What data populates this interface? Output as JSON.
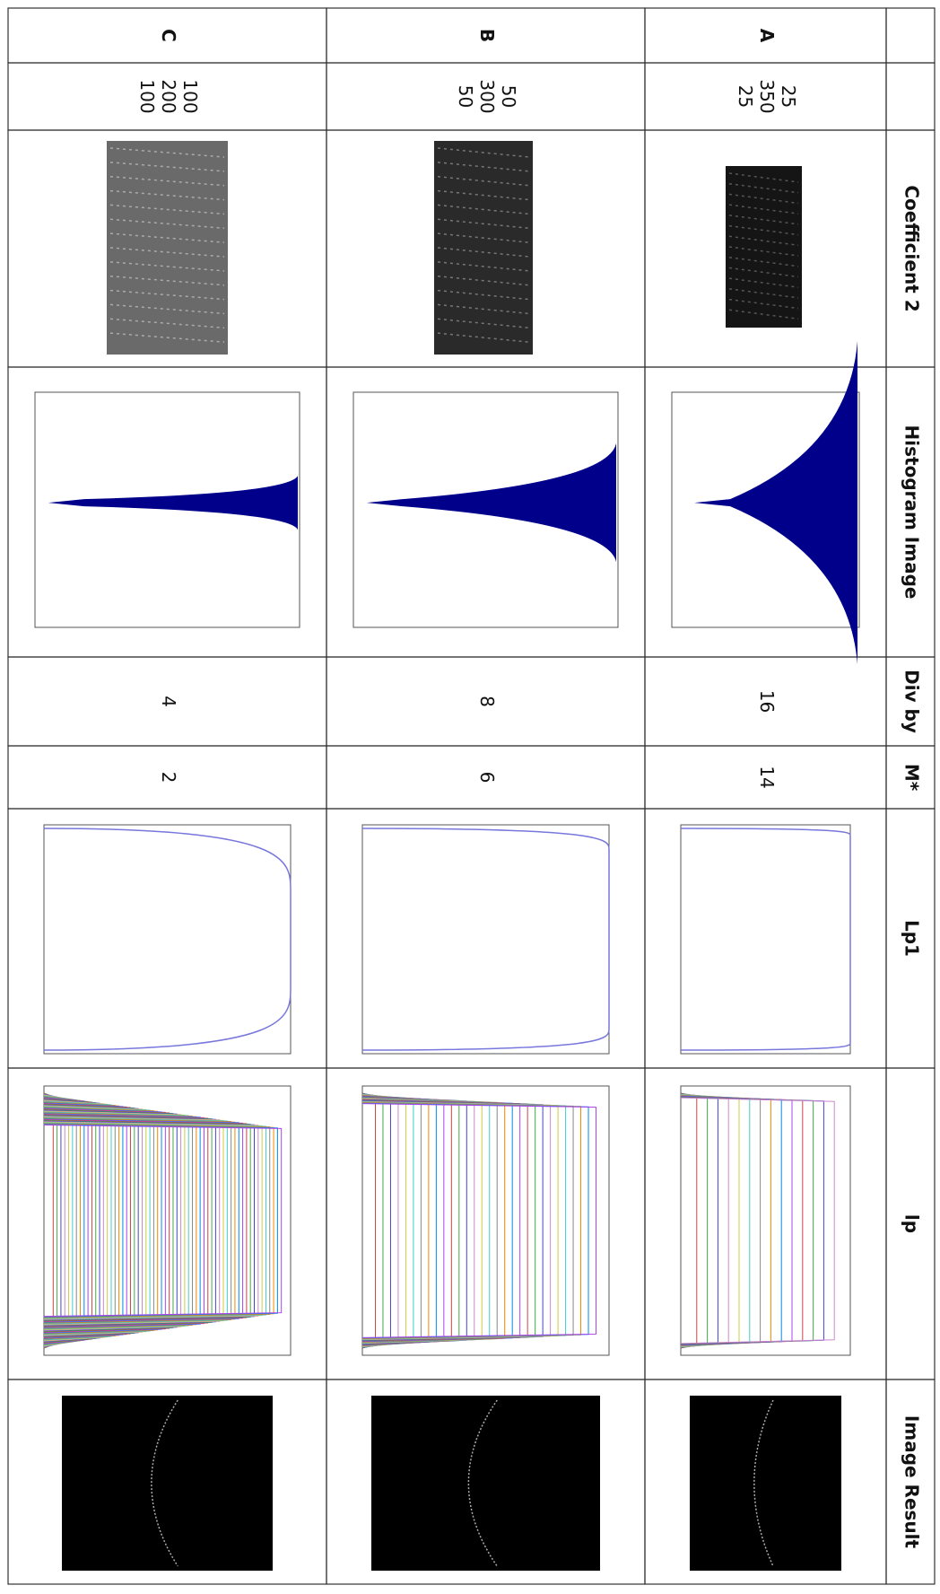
{
  "table": {
    "header": [
      "",
      "",
      "Coefficient  2",
      "Histogram  Image",
      "Div by",
      "M*",
      "Lp1",
      "lp",
      "Image Result"
    ],
    "rows": [
      {
        "label": "A",
        "coefficients": [
          25,
          350,
          25
        ],
        "div_by": 16,
        "m_star": 14
      },
      {
        "label": "B",
        "coefficients": [
          50,
          300,
          50
        ],
        "div_by": 8,
        "m_star": 6
      },
      {
        "label": "C",
        "coefficients": [
          100,
          200,
          100
        ],
        "div_by": 4,
        "m_star": 2
      }
    ]
  }
}
